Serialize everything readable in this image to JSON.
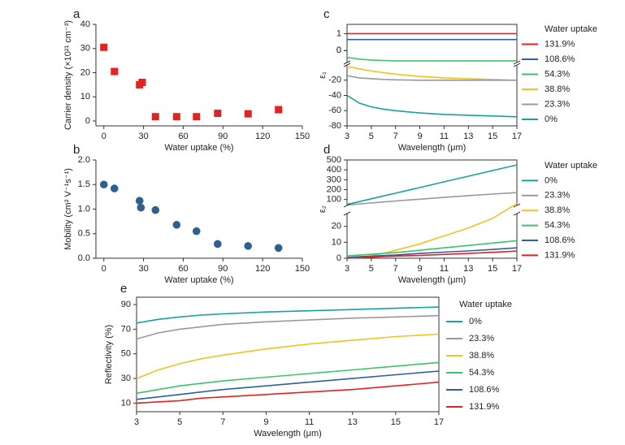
{
  "chart_data": [
    {
      "type": "scatter",
      "panel_label": "a",
      "x_label": "Water uptake (%)",
      "y_label": "Carrier density (×10²¹ cm⁻³)",
      "x": [
        0,
        8,
        27,
        29,
        39,
        55,
        70,
        86,
        109,
        132
      ],
      "values": [
        30.5,
        20.5,
        15,
        16,
        1.8,
        1.8,
        1.8,
        3.2,
        3,
        4.7
      ],
      "color": "#e8201e",
      "marker": "square",
      "xlim": [
        -6,
        150
      ],
      "xticks": [
        0,
        30,
        60,
        90,
        120,
        150
      ],
      "ylim": [
        -2,
        40
      ],
      "yticks": [
        0,
        10,
        20,
        30,
        40
      ]
    },
    {
      "type": "scatter",
      "panel_label": "b",
      "x_label": "Water uptake (%)",
      "y_label": "Mobility (cm² V⁻¹s⁻¹)",
      "x": [
        0,
        8,
        27,
        28,
        39,
        55,
        70,
        86,
        109,
        132
      ],
      "values": [
        1.5,
        1.42,
        1.17,
        1.03,
        0.98,
        0.68,
        0.55,
        0.29,
        0.25,
        0.21
      ],
      "color": "#2e5f8f",
      "marker": "circle",
      "xlim": [
        -6,
        150
      ],
      "xticks": [
        0,
        30,
        60,
        90,
        120,
        150
      ],
      "ylim": [
        0,
        2
      ],
      "yticks": [
        {
          "value": 0,
          "label": "0.0"
        },
        {
          "value": 0.5,
          "label": "0.5"
        },
        {
          "value": 1,
          "label": "1.0"
        },
        {
          "value": 1.5,
          "label": "1.5"
        },
        {
          "value": 2,
          "label": "2.0"
        }
      ]
    },
    {
      "type": "line",
      "panel_label": "c",
      "x_label": "Wavelength (μm)",
      "y_label": "ε₁",
      "legend_title": "Water uptake",
      "x": [
        3,
        4,
        5,
        6,
        7,
        9,
        11,
        13,
        15,
        17
      ],
      "xlim": [
        3,
        17
      ],
      "xticks": [
        3,
        5,
        7,
        9,
        11,
        13,
        15,
        17
      ],
      "y_segments": [
        {
          "ylim": [
            -80,
            0
          ],
          "yticks": [
            -80,
            -60,
            -40,
            -20,
            0
          ]
        },
        {
          "ylim": [
            -0.7,
            1.4
          ],
          "yticks": [
            0,
            1
          ]
        }
      ],
      "series": [
        {
          "name": "131.9%",
          "color": "#e8201e",
          "values": [
            1,
            1,
            1,
            1,
            1,
            1,
            1,
            1,
            1,
            1
          ]
        },
        {
          "name": "108.6%",
          "color": "#2e5fa3",
          "values": [
            0.65,
            0.65,
            0.65,
            0.65,
            0.65,
            0.65,
            0.65,
            0.65,
            0.65,
            0.65
          ]
        },
        {
          "name": "54.3%",
          "color": "#3cc46a",
          "values": [
            -0.4,
            -0.5,
            -0.55,
            -0.58,
            -0.6,
            -0.6,
            -0.6,
            -0.6,
            -0.6,
            -0.6
          ]
        },
        {
          "name": "38.8%",
          "color": "#f5c21b",
          "values": [
            -2,
            -5,
            -8,
            -10,
            -12,
            -15,
            -17,
            -18,
            -19,
            -20
          ]
        },
        {
          "name": "23.3%",
          "color": "#999999",
          "values": [
            -14,
            -17,
            -18,
            -19,
            -19.5,
            -20,
            -20,
            -20,
            -20,
            -20
          ]
        },
        {
          "name": "0%",
          "color": "#17a2a0",
          "values": [
            -40,
            -50,
            -55,
            -58,
            -60,
            -63,
            -65,
            -66,
            -67,
            -68
          ]
        }
      ]
    },
    {
      "type": "line",
      "panel_label": "d",
      "x_label": "Wavelength (μm)",
      "y_label": "ε₂",
      "legend_title": "Water uptake",
      "x": [
        3,
        4,
        5,
        6,
        7,
        9,
        11,
        13,
        15,
        17
      ],
      "xlim": [
        3,
        17
      ],
      "xticks": [
        3,
        5,
        7,
        9,
        11,
        13,
        15,
        17
      ],
      "y_segments": [
        {
          "ylim": [
            0,
            28
          ],
          "yticks": [
            0,
            10,
            20
          ]
        },
        {
          "ylim": [
            40,
            500
          ],
          "yticks": [
            100,
            200,
            300,
            400,
            500
          ]
        }
      ],
      "series": [
        {
          "name": "0%",
          "color": "#17a2a0",
          "values": [
            50,
            79,
            107,
            136,
            164,
            221,
            279,
            336,
            393,
            450
          ]
        },
        {
          "name": "23.3%",
          "color": "#999999",
          "values": [
            45,
            55,
            65,
            75,
            85,
            103,
            121,
            139,
            155,
            170
          ]
        },
        {
          "name": "38.8%",
          "color": "#f5c21b",
          "values": [
            0,
            0.5,
            1.5,
            3,
            5,
            9,
            14,
            19,
            25,
            60
          ]
        },
        {
          "name": "54.3%",
          "color": "#3cc46a",
          "values": [
            1.5,
            2,
            2.5,
            3,
            3.5,
            5,
            6.5,
            8,
            9.5,
            11
          ]
        },
        {
          "name": "108.6%",
          "color": "#2e5fa3",
          "values": [
            0.5,
            1,
            1.3,
            1.7,
            2,
            3,
            3.8,
            4.6,
            5.5,
            6.5
          ]
        },
        {
          "name": "131.9%",
          "color": "#e8201e",
          "values": [
            0,
            0.3,
            0.6,
            1,
            1.3,
            1.8,
            2.4,
            3,
            3.7,
            4.5
          ]
        }
      ]
    },
    {
      "type": "line",
      "panel_label": "e",
      "x_label": "Wavelength (μm)",
      "y_label": "Reflectivity (%)",
      "legend_title": "Water uptake",
      "x": [
        3,
        4,
        5,
        6,
        7,
        9,
        11,
        13,
        15,
        17
      ],
      "xlim": [
        3,
        17
      ],
      "xticks": [
        3,
        5,
        7,
        9,
        11,
        13,
        15,
        17
      ],
      "ylim": [
        3,
        96
      ],
      "yticks": [
        10,
        30,
        50,
        70,
        90
      ],
      "series": [
        {
          "name": "0%",
          "color": "#17a2a0",
          "values": [
            75,
            78,
            80,
            81.5,
            82.5,
            84,
            85,
            86,
            87,
            88
          ]
        },
        {
          "name": "23.3%",
          "color": "#999999",
          "values": [
            62,
            67,
            70,
            72,
            74,
            76,
            77.5,
            79,
            80,
            81
          ]
        },
        {
          "name": "38.8%",
          "color": "#f5c21b",
          "values": [
            30,
            37,
            42,
            46,
            49,
            54,
            58,
            61,
            64,
            66
          ]
        },
        {
          "name": "54.3%",
          "color": "#3cc46a",
          "values": [
            18,
            21,
            24,
            26,
            28,
            31,
            34,
            37,
            40,
            43
          ]
        },
        {
          "name": "108.6%",
          "color": "#2e5fa3",
          "values": [
            13,
            15,
            17,
            19,
            21,
            24,
            27,
            30,
            33,
            36
          ]
        },
        {
          "name": "131.9%",
          "color": "#e8201e",
          "values": [
            10,
            11,
            12,
            14,
            15,
            17,
            19,
            21,
            24,
            27
          ]
        }
      ]
    }
  ]
}
